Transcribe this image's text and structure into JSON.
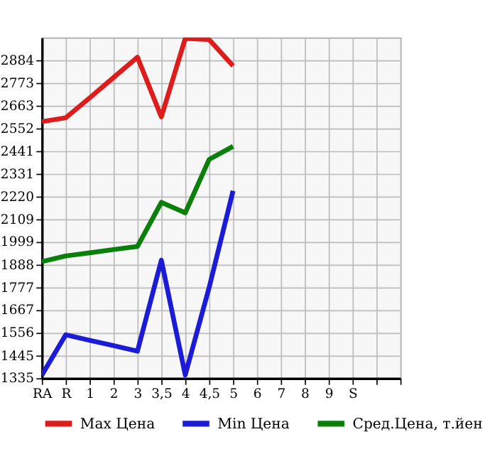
{
  "chart_data": {
    "type": "line",
    "categories": [
      "RA",
      "R",
      "1",
      "2",
      "3",
      "3,5",
      "4",
      "4,5",
      "5",
      "6",
      "7",
      "8",
      "9",
      "S",
      null,
      null
    ],
    "series": [
      {
        "name": "Max Цена",
        "color": "#dd1c1c",
        "values": [
          2585,
          2604,
          2701,
          2800,
          2899,
          2608,
          2990,
          2985,
          2857,
          null,
          null,
          null,
          null,
          null,
          null,
          null
        ]
      },
      {
        "name": "Min Цена",
        "color": "#1c1cd6",
        "values": [
          1350,
          1547,
          1520,
          1494,
          1467,
          1910,
          1351,
          1777,
          2248,
          null,
          null,
          null,
          null,
          null,
          null,
          null
        ]
      },
      {
        "name": "Сред.Цена, т.йен",
        "color": "#0a800a",
        "values": [
          1903,
          1931,
          1946,
          1962,
          1977,
          2192,
          2141,
          2401,
          2465,
          null,
          null,
          null,
          null,
          null,
          null,
          null
        ]
      }
    ],
    "ylim": [
      1335,
      2995
    ],
    "yticks": [
      1335,
      1445,
      1556,
      1667,
      1777,
      1888,
      1999,
      2109,
      2220,
      2331,
      2441,
      2552,
      2663,
      2773,
      2884
    ],
    "grid": true,
    "legend": "bottom",
    "marker": "none",
    "line_style": "solid"
  }
}
